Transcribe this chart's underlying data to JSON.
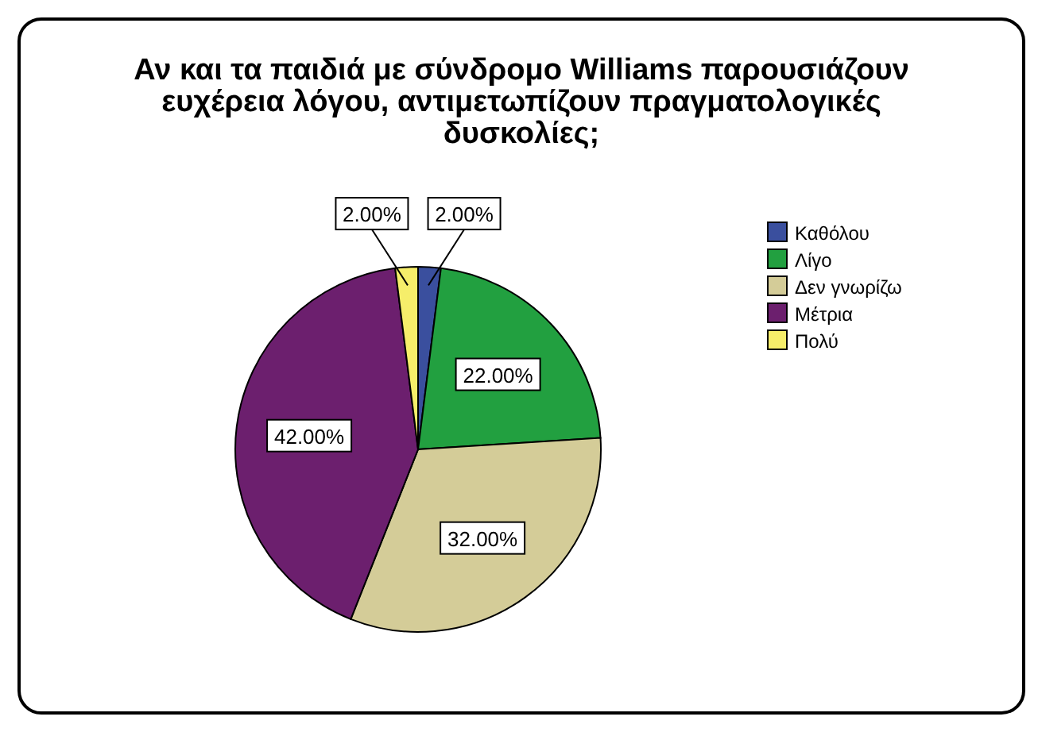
{
  "chart_data": {
    "type": "pie",
    "title": "Αν και τα παιδιά με σύνδρομο Williams παρουσιάζουν ευχέρεια λόγου, αντιμετωπίζουν πραγματολογικές δυσκολίες;",
    "categories": [
      "Καθόλου",
      "Λίγο",
      "Δεν γνωρίζω",
      "Μέτρια",
      "Πολύ"
    ],
    "values": [
      2,
      22,
      32,
      42,
      2
    ],
    "colors": [
      "#3a4f9e",
      "#22a040",
      "#d4cc98",
      "#6c1f6e",
      "#f6ee6a"
    ],
    "value_labels": [
      "2.00%",
      "22.00%",
      "32.00%",
      "42.00%",
      "2.00%"
    ],
    "legend": "top right"
  }
}
